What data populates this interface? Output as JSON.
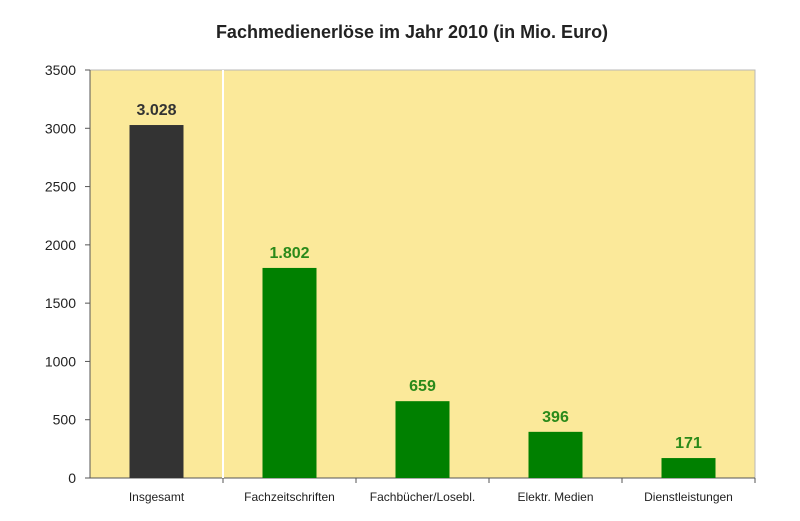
{
  "chart_data": {
    "type": "bar",
    "title": "Fachmedienerlöse im Jahr 2010 (in Mio. Euro)",
    "xlabel": "",
    "ylabel": "",
    "ylim": [
      0,
      3500
    ],
    "yticks": [
      "0",
      "500",
      "1000",
      "1500",
      "2000",
      "2500",
      "3000",
      "3500"
    ],
    "categories": [
      "Insgesamt",
      "Fachzeitschriften",
      "Fachbücher/Losebl.",
      "Elektr. Medien",
      "Dienstleistungen"
    ],
    "values": [
      3028,
      1802,
      659,
      396,
      171
    ],
    "data_labels": [
      "3.028",
      "1.802",
      "659",
      "396",
      "171"
    ],
    "bar_colors": [
      "#333333",
      "#008000",
      "#008000",
      "#008000",
      "#008000"
    ],
    "label_colors": [
      "#333333",
      "#2a8a1a",
      "#2a8a1a",
      "#2a8a1a",
      "#2a8a1a"
    ],
    "plot_background": "#fbe99a",
    "separator_after_category": 0,
    "grid": false,
    "legend": "none"
  }
}
